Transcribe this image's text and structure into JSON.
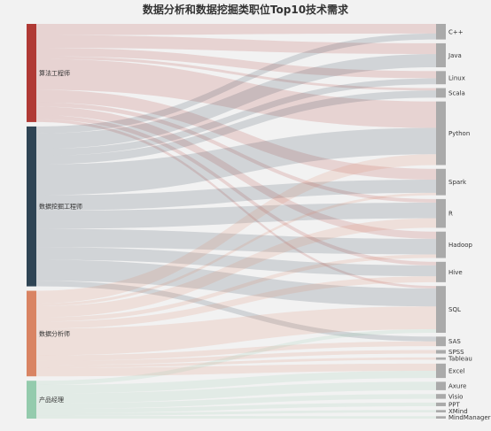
{
  "chart_data": {
    "type": "sankey",
    "title": "数据分析和数据挖掘类职位Top10技术需求",
    "sources": [
      {
        "name": "算法工程师",
        "color": "#b03a35"
      },
      {
        "name": "数据挖掘工程师",
        "color": "#2f4454"
      },
      {
        "name": "数据分析师",
        "color": "#d98463"
      },
      {
        "name": "产品经理",
        "color": "#94cbad"
      }
    ],
    "targets": [
      "C++",
      "Java",
      "Linux",
      "Scala",
      "Python",
      "Spark",
      "R",
      "Hadoop",
      "Hive",
      "SQL",
      "SAS",
      "SPSS",
      "Tableau",
      "Excel",
      "Axure",
      "Visio",
      "PPT",
      "XMind",
      "MindManager"
    ],
    "target_color": "#aaaaaa",
    "links": [
      {
        "source": "算法工程师",
        "target": "C++",
        "value": 8
      },
      {
        "source": "算法工程师",
        "target": "Java",
        "value": 9
      },
      {
        "source": "算法工程师",
        "target": "Linux",
        "value": 6
      },
      {
        "source": "算法工程师",
        "target": "Scala",
        "value": 2
      },
      {
        "source": "算法工程师",
        "target": "Python",
        "value": 22
      },
      {
        "source": "算法工程师",
        "target": "Spark",
        "value": 9
      },
      {
        "source": "算法工程师",
        "target": "R",
        "value": 3
      },
      {
        "source": "算法工程师",
        "target": "Hadoop",
        "value": 6
      },
      {
        "source": "算法工程师",
        "target": "Hive",
        "value": 3
      },
      {
        "source": "算法工程师",
        "target": "SQL",
        "value": 2
      },
      {
        "source": "数据挖掘工程师",
        "target": "C++",
        "value": 5
      },
      {
        "source": "数据挖掘工程师",
        "target": "Java",
        "value": 11
      },
      {
        "source": "数据挖掘工程师",
        "target": "Linux",
        "value": 5
      },
      {
        "source": "数据挖掘工程师",
        "target": "Scala",
        "value": 6
      },
      {
        "source": "数据挖掘工程师",
        "target": "Python",
        "value": 22
      },
      {
        "source": "数据挖掘工程师",
        "target": "Spark",
        "value": 11
      },
      {
        "source": "数据挖掘工程师",
        "target": "R",
        "value": 13
      },
      {
        "source": "数据挖掘工程师",
        "target": "Hadoop",
        "value": 13
      },
      {
        "source": "数据挖掘工程师",
        "target": "Hive",
        "value": 9
      },
      {
        "source": "数据挖掘工程师",
        "target": "SQL",
        "value": 15
      },
      {
        "source": "数据挖掘工程师",
        "target": "SAS",
        "value": 4
      },
      {
        "source": "数据分析师",
        "target": "Python",
        "value": 9
      },
      {
        "source": "数据分析师",
        "target": "Spark",
        "value": 2
      },
      {
        "source": "数据分析师",
        "target": "R",
        "value": 8
      },
      {
        "source": "数据分析师",
        "target": "Hadoop",
        "value": 3
      },
      {
        "source": "数据分析师",
        "target": "Hive",
        "value": 5
      },
      {
        "source": "数据分析师",
        "target": "SQL",
        "value": 19
      },
      {
        "source": "数据分析师",
        "target": "SAS",
        "value": 4
      },
      {
        "source": "数据分析师",
        "target": "SPSS",
        "value": 3
      },
      {
        "source": "数据分析师",
        "target": "Tableau",
        "value": 2
      },
      {
        "source": "数据分析师",
        "target": "Excel",
        "value": 6
      },
      {
        "source": "产品经理",
        "target": "SQL",
        "value": 3
      },
      {
        "source": "产品经理",
        "target": "Excel",
        "value": 6
      },
      {
        "source": "产品经理",
        "target": "Axure",
        "value": 7
      },
      {
        "source": "产品经理",
        "target": "Visio",
        "value": 4
      },
      {
        "source": "产品经理",
        "target": "PPT",
        "value": 3
      },
      {
        "source": "产品经理",
        "target": "XMind",
        "value": 2
      },
      {
        "source": "产品经理",
        "target": "MindManager",
        "value": 2
      }
    ]
  }
}
